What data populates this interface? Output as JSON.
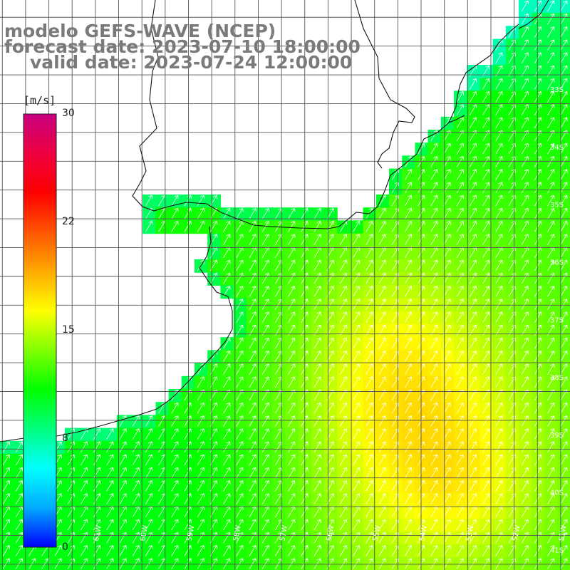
{
  "title": {
    "line1": "modelo GEFS-WAVE (NCEP)",
    "line2": "forecast date: 2023-07-10 18:00:00",
    "line3": "valid date: 2023-07-24 12:00:00"
  },
  "colorbar": {
    "unit": "[m/s]",
    "ticks": [
      "30",
      "22",
      "15",
      "8",
      "0"
    ],
    "tick_values": [
      30,
      22,
      15,
      8,
      0
    ],
    "min": 0,
    "max": 30,
    "colors": [
      "#0000ff",
      "#00aaff",
      "#00ffff",
      "#00ff80",
      "#00ff00",
      "#80ff00",
      "#ffff00",
      "#ffaa00",
      "#ff5500",
      "#ff0000",
      "#ee0040",
      "#c80080"
    ]
  },
  "map": {
    "lat_labels": [
      "33S",
      "34S",
      "35S",
      "36S",
      "37S",
      "38S",
      "39S",
      "40S",
      "41S"
    ],
    "lon_labels": [
      "62W",
      "61W",
      "60W",
      "59W",
      "58W",
      "57W",
      "56W",
      "55W",
      "54W",
      "53W",
      "52W",
      "51W"
    ],
    "lat_values": [
      -33,
      -34,
      -35,
      -36,
      -37,
      -38,
      -39,
      -40,
      -41
    ],
    "lon_values": [
      -62,
      -61,
      -60,
      -59,
      -58,
      -57,
      -56,
      -55,
      -54,
      -53,
      -52,
      -51
    ],
    "extent": {
      "lon_min": -63.05,
      "lon_max": -50.8,
      "lat_max": -31.7,
      "lat_min": -41.6
    },
    "grid": "on",
    "wind_direction": "from southwest (arrows point northeast)",
    "speed_range_shown": [
      8,
      18
    ]
  }
}
